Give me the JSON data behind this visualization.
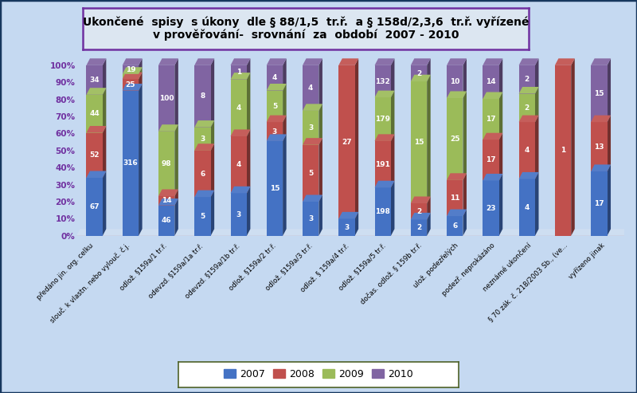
{
  "title_line1": "Ukončené  spisy  s úkony  dle § 88/1,5  tr.ř.  a § 158d/2,3,6  tr.ř. vyřízené",
  "title_line2": "v prověřování-  srovnání  za  období  2007 - 2010",
  "categories": [
    "předáno jin. org. celku",
    "slouč. k vlastn. nebo vylouč. č.j.",
    "odlož. §159a/1 tr.ř.",
    "odevzd. §159a/1a tr.ř.",
    "odevzd. §159a/1b tr.ř.",
    "odlož. §159a/2 tr.ř.",
    "odlož. §159a/3 tr.ř.",
    "odlož. § 159a/4 tr.ř.",
    "odlož. §159a/5 tr.ř.",
    "dočas. odlož. § 159b tr.ř.",
    "ulož. podezřelých",
    "podezř. neprokázáno",
    "neznámé ukončení",
    "§ 70 zák. č. 218/2003 Sb., (ve...",
    "vyřízeno jinak"
  ],
  "values_2007": [
    67,
    316,
    46,
    5,
    3,
    15,
    3,
    3,
    198,
    2,
    6,
    23,
    4,
    0,
    17
  ],
  "values_2008": [
    52,
    25,
    14,
    6,
    4,
    3,
    5,
    27,
    191,
    2,
    11,
    17,
    4,
    1,
    13
  ],
  "values_2009": [
    44,
    11,
    98,
    3,
    4,
    5,
    3,
    0,
    179,
    15,
    25,
    17,
    2,
    0,
    0
  ],
  "values_2010": [
    34,
    19,
    100,
    8,
    1,
    4,
    4,
    0,
    132,
    2,
    10,
    14,
    2,
    0,
    15
  ],
  "color_2007": "#4472c4",
  "color_2008": "#c0504d",
  "color_2009": "#9bbb59",
  "color_2010": "#8064a2",
  "background_color": "#c5d9f1",
  "plot_bg": "#c5d9f1",
  "title_bg": "#dce6f1",
  "title_border": "#7030a0",
  "ytick_color": "#7030a0",
  "legend_border": "#4f6228",
  "outer_border": "#17375e",
  "label_fontsize": 6.5,
  "ytick_fontsize": 7.5,
  "xtick_fontsize": 6.2,
  "title_fontsize": 10,
  "bar_width": 0.45,
  "3d_ox": 0.1,
  "3d_oy": 4.0
}
